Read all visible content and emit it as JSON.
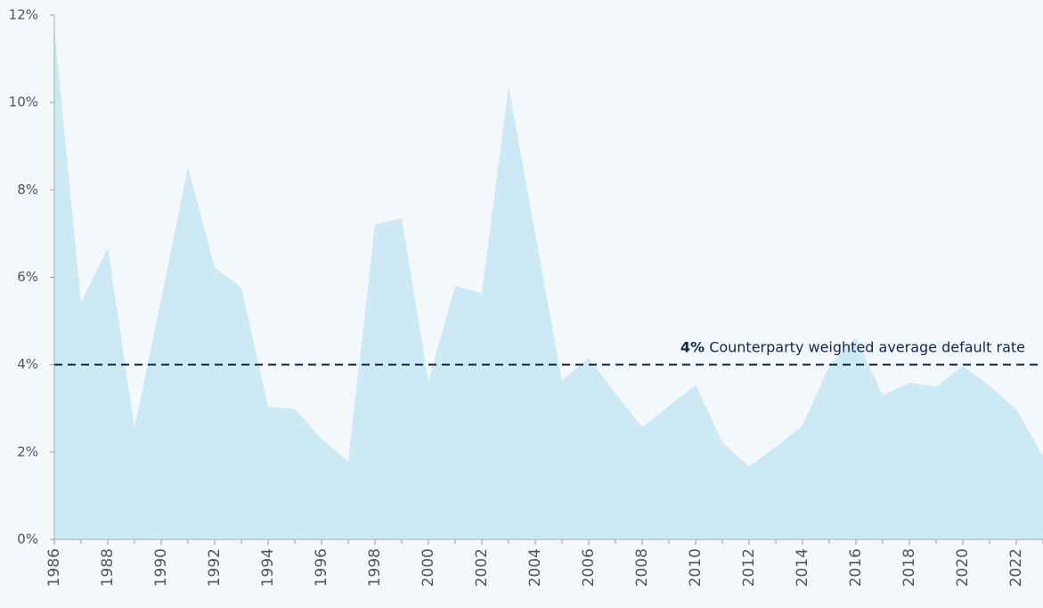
{
  "chart_data": {
    "type": "area",
    "x": [
      1986,
      1987,
      1988,
      1989,
      1990,
      1991,
      1992,
      1993,
      1994,
      1995,
      1996,
      1997,
      1998,
      1999,
      2000,
      2001,
      2002,
      2003,
      2004,
      2005,
      2006,
      2007,
      2008,
      2009,
      2010,
      2011,
      2012,
      2013,
      2014,
      2015,
      2016,
      2017,
      2018,
      2019,
      2020,
      2021,
      2022,
      2023
    ],
    "values": [
      11.7,
      5.42,
      6.68,
      2.57,
      5.5,
      8.53,
      6.23,
      5.76,
      3.03,
      2.99,
      2.3,
      1.79,
      7.21,
      7.35,
      3.63,
      5.8,
      5.64,
      10.37,
      7.0,
      3.63,
      4.15,
      3.34,
      2.57,
      3.05,
      3.54,
      2.22,
      1.67,
      2.12,
      2.61,
      3.97,
      4.62,
      3.3,
      3.58,
      3.5,
      3.97,
      3.52,
      2.97,
      1.91
    ],
    "color": "#cde9f5",
    "xlim": [
      1986,
      2023
    ],
    "xticks": [
      1986,
      1988,
      1990,
      1992,
      1994,
      1996,
      1998,
      2000,
      2002,
      2004,
      2006,
      2008,
      2010,
      2012,
      2014,
      2016,
      2018,
      2020,
      2022
    ],
    "ylim": [
      0,
      12
    ],
    "yticks": [
      {
        "value": 0,
        "label": "0%"
      },
      {
        "value": 2,
        "label": "2%"
      },
      {
        "value": 4,
        "label": "4%"
      },
      {
        "value": 6,
        "label": "6%"
      },
      {
        "value": 8,
        "label": "8%"
      },
      {
        "value": 10,
        "label": "10%"
      },
      {
        "value": 12,
        "label": "12%"
      }
    ],
    "reference_line": {
      "value": 4,
      "value_label": "4%",
      "label": "Counterparty weighted average default rate",
      "color": "#14254a"
    }
  }
}
